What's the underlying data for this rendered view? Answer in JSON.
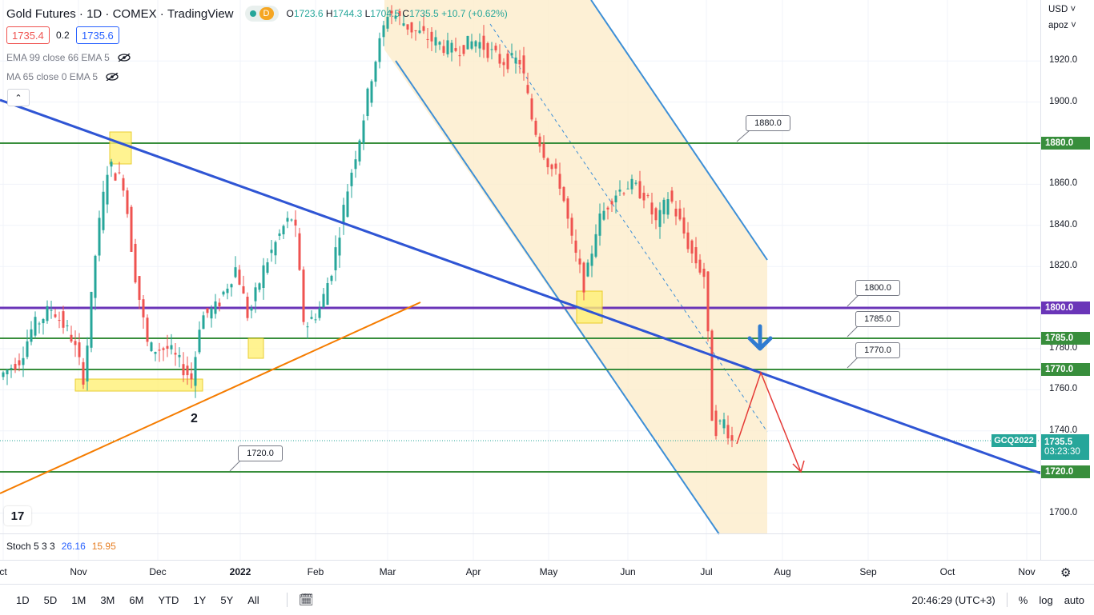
{
  "header": {
    "symbol": "Gold Futures",
    "interval": "1D",
    "exchange": "COMEX",
    "source": "TradingView",
    "status_letter": "D",
    "open_label": "O",
    "open": "1723.6",
    "high_label": "H",
    "high": "1744.3",
    "low_label": "L",
    "low": "1704.5",
    "close_label": "C",
    "close": "1735.5",
    "change": "+10.7 (+0.62%)"
  },
  "order": {
    "sell": "1735.4",
    "spread": "0.2",
    "buy": "1735.6"
  },
  "indicators": {
    "ema": "EMA 99 close 66 EMA 5",
    "ma": "MA 65 close 0 EMA 5",
    "stoch_label": "Stoch 5 3 3",
    "stoch_k": "26.16",
    "stoch_d": "15.95"
  },
  "right_axis": {
    "currency": "USD",
    "user": "apoz",
    "ticks": [
      "1920.0",
      "1900.0",
      "1880.0",
      "1860.0",
      "1840.0",
      "1820.0",
      "1800.0",
      "1780.0",
      "1760.0",
      "1740.0",
      "1720.0",
      "1700.0"
    ],
    "level_tags": [
      {
        "text": "1880.0",
        "color": "#388e3c"
      },
      {
        "text": "1800.0",
        "color": "#6a35b8"
      },
      {
        "text": "1785.0",
        "color": "#388e3c"
      },
      {
        "text": "1770.0",
        "color": "#388e3c"
      },
      {
        "text": "1720.0",
        "color": "#388e3c"
      }
    ],
    "symbol_tag": "GCQ2022",
    "last_price": "1735.5",
    "countdown": "03:23:30"
  },
  "level_labels": [
    "1880.0",
    "1800.0",
    "1785.0",
    "1770.0",
    "1720.0"
  ],
  "annotation": "2",
  "x_axis": [
    "ct",
    "Nov",
    "Dec",
    "2022",
    "Feb",
    "Mar",
    "Apr",
    "May",
    "Jun",
    "Jul",
    "Aug",
    "Sep",
    "Oct",
    "Nov"
  ],
  "timeframes": [
    "1D",
    "5D",
    "1M",
    "3M",
    "6M",
    "YTD",
    "1Y",
    "5Y",
    "All"
  ],
  "bottom_right": {
    "clock": "20:46:29 (UTC+3)",
    "percent": "%",
    "log": "log",
    "auto": "auto"
  },
  "logo": "17",
  "colors": {
    "up": "#26a69a",
    "down": "#ef5350",
    "trend": "#2f55d4",
    "channel": "#3d8fd6",
    "orange": "#f57c00",
    "purple": "#6a35b8",
    "green": "#388e3c"
  },
  "chart_data": {
    "type": "candlestick",
    "price_range": [
      1690,
      1945
    ],
    "horizontal_levels": [
      1880,
      1800,
      1785,
      1770,
      1720
    ]
  }
}
